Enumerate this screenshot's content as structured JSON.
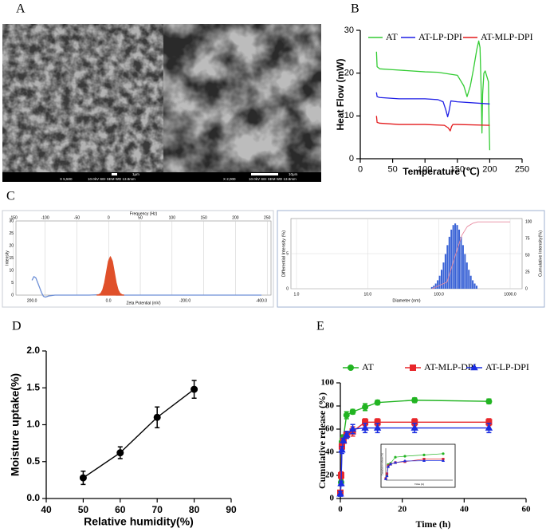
{
  "panel_labels": [
    "A",
    "B",
    "C",
    "D",
    "E"
  ],
  "sem_images": [
    {
      "magnification": "X 5,500",
      "info": "10.0kV SEI SEM WD 13.8mm",
      "scale": "1μm"
    },
    {
      "magnification": "X 2,000",
      "info": "10.0kV SEI SEM WD 13.8mm",
      "scale": "10μm"
    }
  ],
  "chart_data": [
    {
      "type": "line",
      "x_label": "Temperature (℃)",
      "y_label": "Heat Flow (mW)",
      "xlim": [
        0,
        250
      ],
      "xticks": [
        0,
        50,
        100,
        150,
        200,
        250
      ],
      "ylim": [
        0,
        30
      ],
      "yticks": [
        0,
        10,
        20,
        30
      ],
      "grid": false,
      "series": [
        {
          "name": "AT",
          "color": "#33cc33",
          "x": [
            25,
            26,
            30,
            50,
            100,
            120,
            150,
            160,
            165,
            170,
            175,
            180,
            183,
            185,
            187,
            188,
            189,
            191,
            193,
            196,
            198,
            199,
            200
          ],
          "values": [
            25,
            21.5,
            21,
            20.8,
            20.3,
            20.2,
            19.5,
            17,
            14.5,
            17,
            21,
            25.5,
            27.5,
            26,
            15,
            6,
            15,
            20,
            20.5,
            19,
            18,
            8,
            2
          ]
        },
        {
          "name": "AT-LP-DPI",
          "color": "#1f1fe6",
          "x": [
            25,
            26,
            30,
            60,
            100,
            120,
            128,
            132,
            135,
            137,
            140,
            150,
            200
          ],
          "values": [
            15.5,
            14.5,
            14.3,
            14,
            14,
            13.8,
            13.3,
            11.5,
            9.8,
            11,
            13.5,
            13.3,
            12.8
          ]
        },
        {
          "name": "AT-MLP-DPI",
          "color": "#e31a1c",
          "x": [
            25,
            26,
            30,
            60,
            100,
            130,
            136,
            139,
            141,
            143,
            150,
            200
          ],
          "values": [
            10,
            8.5,
            8.3,
            8,
            8,
            7.8,
            7.2,
            6.5,
            7.5,
            8,
            8,
            7.8
          ]
        }
      ]
    },
    {
      "type": "line",
      "x_label": "Zeta Potential (mV)",
      "x2_label": "Frequency (Hz)",
      "y_label": "Intensity",
      "xlim": [
        242,
        -425
      ],
      "xticks": [
        {
          "value": 200,
          "label": "200.0"
        },
        {
          "value": 0,
          "label": "0.0"
        },
        {
          "value": -200,
          "label": "-200.0"
        },
        {
          "value": -400,
          "label": "-400.0"
        }
      ],
      "x2lim": [
        -146,
        256
      ],
      "x2ticks": [
        -150,
        -100,
        -50,
        0,
        50,
        100,
        150,
        200,
        250
      ],
      "ylim": [
        0,
        30
      ],
      "yticks": [
        0,
        5,
        10,
        15,
        20,
        25,
        30
      ],
      "grid": true,
      "series": [
        {
          "color": "#6d8fd6",
          "x": [
            200,
            195,
            190,
            185,
            180,
            175,
            170,
            165,
            155,
            140,
            100,
            50,
            20,
            10,
            0,
            -10,
            -20,
            -50,
            -100,
            -200,
            -300,
            -400
          ],
          "values": [
            6,
            7.5,
            7,
            5,
            3,
            1,
            -0.5,
            -0.8,
            -0.3,
            0,
            0,
            0,
            0.2,
            0.5,
            0.5,
            0.3,
            0,
            0,
            0,
            0,
            0,
            0
          ]
        },
        {
          "color": "#e0502a",
          "fill": true,
          "x": [
            30,
            25,
            20,
            15,
            10,
            5,
            0,
            -5,
            -10,
            -15,
            -20,
            -25,
            -30,
            -35,
            -40
          ],
          "values": [
            0.03,
            0.17,
            0.68,
            2.1,
            5.0,
            9.4,
            13.7,
            15.5,
            13.7,
            9.4,
            5.0,
            2.1,
            0.68,
            0.17,
            0.03
          ]
        }
      ]
    },
    {
      "type": "bar",
      "x_label": "Diameter (nm)",
      "y_label": "Differential Intensity (%)",
      "y2_label": "Cumulative Intensity(%)",
      "xlog": true,
      "xlim": [
        0.835,
        1472
      ],
      "xticks": [
        {
          "value": 1,
          "label": "1.0"
        },
        {
          "value": 10,
          "label": "10.0"
        },
        {
          "value": 100,
          "label": "100.0"
        },
        {
          "value": 1000,
          "label": "1000.0"
        }
      ],
      "ylim": [
        0,
        10
      ],
      "yticks": [
        0,
        5
      ],
      "y2lim": [
        0,
        105
      ],
      "y2ticks": [
        0,
        25,
        50,
        75,
        100
      ],
      "grid": true,
      "color": "#3a63d6",
      "x": [
        80,
        85.2,
        90.7,
        96.6,
        102.9,
        109.6,
        116.7,
        124.3,
        132.4,
        141.0,
        150.2,
        159.9,
        170.3,
        181.4,
        193.2,
        205.7,
        219.1,
        233.3,
        248.5,
        264.7,
        281.9,
        300.2,
        319.7,
        340.5
      ],
      "values": [
        0.24,
        0.43,
        0.74,
        1.2,
        1.85,
        2.7,
        3.74,
        4.94,
        6.21,
        7.4,
        8.42,
        9.07,
        9.3,
        9.07,
        8.42,
        7.4,
        6.21,
        4.94,
        3.74,
        2.7,
        1.85,
        1.2,
        0.74,
        0.43
      ],
      "cumulative": {
        "color": "#e88aa0",
        "axis": "y2",
        "x": [
          80,
          130,
          170,
          210,
          250,
          300,
          350,
          1000
        ],
        "values": [
          0,
          10,
          50,
          80,
          93,
          98,
          100,
          100
        ]
      }
    },
    {
      "type": "line",
      "x_label": "Relative humidity(%)",
      "y_label": "Moisture uptake(%)",
      "xlim": [
        40,
        90
      ],
      "xticks": [
        40,
        50,
        60,
        70,
        80,
        90
      ],
      "ylim": [
        0,
        2
      ],
      "yticks": [
        {
          "value": 0,
          "label": "0.0"
        },
        0.5,
        {
          "value": 1,
          "label": "1.0"
        },
        1.5,
        {
          "value": 2,
          "label": "2.0"
        }
      ],
      "grid": false,
      "x": [
        50,
        60,
        70,
        80
      ],
      "series": [
        {
          "color": "#000000",
          "marker": "circle",
          "values": [
            0.28,
            0.62,
            1.1,
            1.48
          ],
          "errors": [
            0.09,
            0.08,
            0.14,
            0.12
          ]
        }
      ]
    },
    {
      "type": "line",
      "x_label": "Time (h)",
      "y_label": "Cumulative release (%)",
      "xlim": [
        0,
        60
      ],
      "xticks": [
        0,
        20,
        40,
        60
      ],
      "ylim": [
        0,
        100
      ],
      "yticks": [
        0,
        20,
        40,
        60,
        80,
        100
      ],
      "grid": false,
      "x": [
        0,
        0.25,
        0.5,
        1,
        2,
        4,
        8,
        12,
        24,
        48
      ],
      "series": [
        {
          "name": "AT",
          "color": "#22b422",
          "marker": "circle",
          "values": [
            5,
            14,
            49,
            53,
            72,
            75,
            79,
            83,
            85,
            84
          ],
          "errors": [
            1,
            2,
            3,
            2,
            3,
            2,
            3,
            2,
            2,
            2
          ]
        },
        {
          "name": "AT-MLP-DPI",
          "color": "#e8262a",
          "marker": "square",
          "values": [
            5,
            20,
            45,
            50,
            55,
            58,
            66,
            66,
            66,
            66
          ],
          "errors": [
            2,
            3,
            3,
            2,
            3,
            4,
            3,
            3,
            3,
            3
          ]
        },
        {
          "name": "AT-LP-DPI",
          "color": "#1a2de0",
          "marker": "triangle",
          "values": [
            4,
            13,
            42,
            50,
            55,
            60,
            61,
            61,
            61,
            61
          ],
          "errors": [
            2,
            2,
            3,
            2,
            3,
            4,
            4,
            4,
            4,
            4
          ]
        }
      ],
      "inset": {
        "x_label": "Time (h)",
        "y_label": "Cumulative release (%)",
        "xlim": [
          0,
          14
        ],
        "ylim": [
          0,
          100
        ]
      }
    }
  ]
}
